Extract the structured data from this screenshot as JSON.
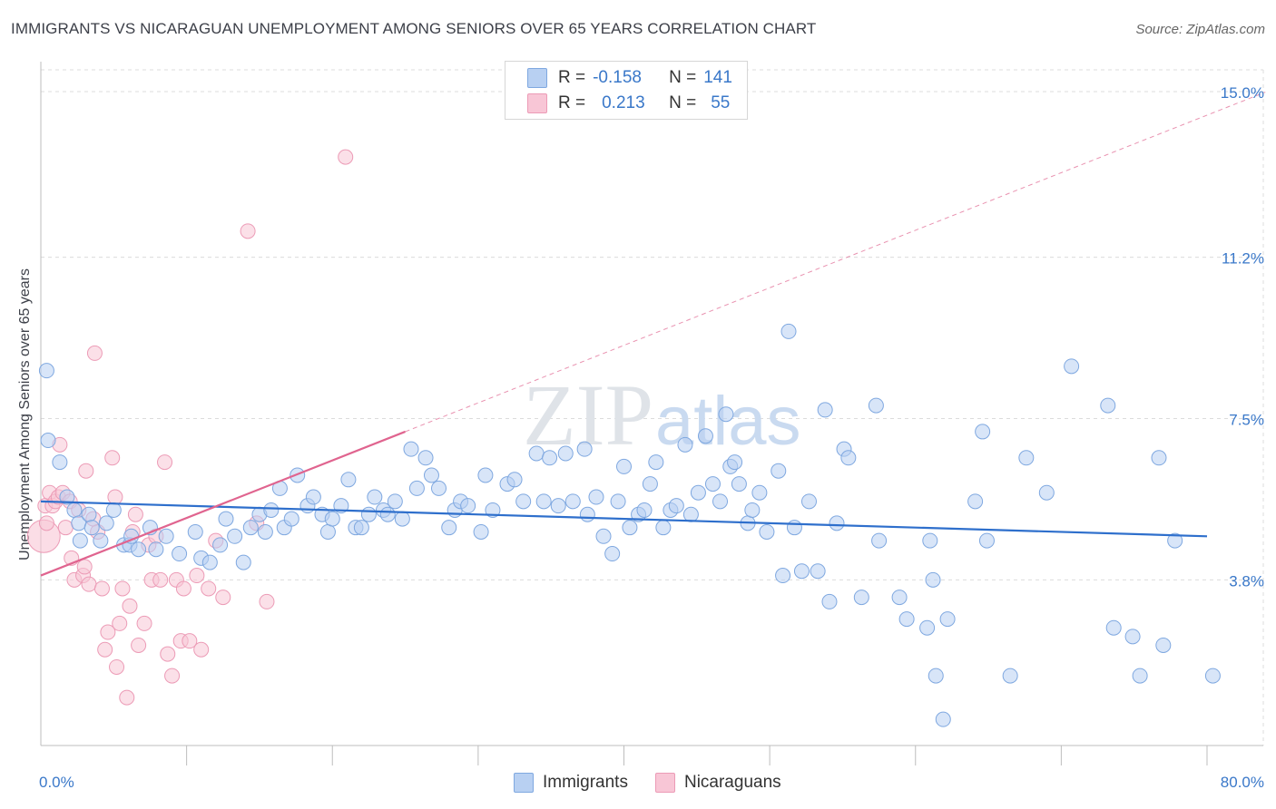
{
  "header": {
    "title": "IMMIGRANTS VS NICARAGUAN UNEMPLOYMENT AMONG SENIORS OVER 65 YEARS CORRELATION CHART",
    "source": "Source: ZipAtlas.com"
  },
  "watermark": {
    "zip": "ZIP",
    "atlas": "atlas"
  },
  "legend_top": {
    "immigrants": {
      "r_label": "R =",
      "r_value": "-0.158",
      "n_label": "N =",
      "n_value": "141"
    },
    "nicaraguans": {
      "r_label": "R =",
      "r_value": "0.213",
      "n_label": "N =",
      "n_value": "55"
    }
  },
  "legend_bottom": {
    "immigrants": "Immigrants",
    "nicaraguans": "Nicaraguans"
  },
  "colors": {
    "immigrants": "#7fa8e0",
    "immigrants_fill": "#b8d0f2",
    "nicaraguans": "#ec9bb6",
    "nicaraguans_fill": "#f8c6d6",
    "blue_line": "#2e6fcc",
    "pink_line": "#e0648f",
    "tick_text": "#3a78c9"
  },
  "chart_data": {
    "type": "scatter",
    "title": "IMMIGRANTS VS NICARAGUAN UNEMPLOYMENT AMONG SENIORS OVER 65 YEARS CORRELATION CHART",
    "xlabel": "",
    "ylabel": "Unemployment Among Seniors over 65 years",
    "xlim": [
      0,
      80
    ],
    "ylim": [
      0,
      15.5
    ],
    "x_tick_labels": [
      "0.0%",
      "80.0%"
    ],
    "y_ticks": [
      3.8,
      7.5,
      11.2,
      15.0
    ],
    "y_tick_labels": [
      "3.8%",
      "7.5%",
      "11.2%",
      "15.0%"
    ],
    "series": [
      {
        "name": "Immigrants",
        "r": -0.158,
        "n": 141,
        "trend": {
          "x": [
            0,
            80
          ],
          "y": [
            5.6,
            4.8
          ]
        },
        "points": [
          [
            0.4,
            8.6
          ],
          [
            0.5,
            7.0
          ],
          [
            1.3,
            6.5
          ],
          [
            1.8,
            5.7
          ],
          [
            2.3,
            5.4
          ],
          [
            2.6,
            5.1
          ],
          [
            2.7,
            4.7
          ],
          [
            3.3,
            5.3
          ],
          [
            3.5,
            5.0
          ],
          [
            4.1,
            4.7
          ],
          [
            4.5,
            5.1
          ],
          [
            5.0,
            5.4
          ],
          [
            5.7,
            4.6
          ],
          [
            6.1,
            4.6
          ],
          [
            6.2,
            4.8
          ],
          [
            6.7,
            4.5
          ],
          [
            7.5,
            5.0
          ],
          [
            7.9,
            4.5
          ],
          [
            8.6,
            4.8
          ],
          [
            9.5,
            4.4
          ],
          [
            10.6,
            4.9
          ],
          [
            11.0,
            4.3
          ],
          [
            11.6,
            4.2
          ],
          [
            12.3,
            4.6
          ],
          [
            12.7,
            5.2
          ],
          [
            13.3,
            4.8
          ],
          [
            13.9,
            4.2
          ],
          [
            14.4,
            5.0
          ],
          [
            15.0,
            5.3
          ],
          [
            15.4,
            4.9
          ],
          [
            15.8,
            5.4
          ],
          [
            16.4,
            5.9
          ],
          [
            16.7,
            5.0
          ],
          [
            17.2,
            5.2
          ],
          [
            17.6,
            6.2
          ],
          [
            18.3,
            5.5
          ],
          [
            18.7,
            5.7
          ],
          [
            19.3,
            5.3
          ],
          [
            19.7,
            4.9
          ],
          [
            20.0,
            5.2
          ],
          [
            20.6,
            5.5
          ],
          [
            21.1,
            6.1
          ],
          [
            21.6,
            5.0
          ],
          [
            22.0,
            5.0
          ],
          [
            22.5,
            5.3
          ],
          [
            22.9,
            5.7
          ],
          [
            23.5,
            5.4
          ],
          [
            23.8,
            5.3
          ],
          [
            24.3,
            5.6
          ],
          [
            24.8,
            5.2
          ],
          [
            25.4,
            6.8
          ],
          [
            25.8,
            5.9
          ],
          [
            26.4,
            6.6
          ],
          [
            26.8,
            6.2
          ],
          [
            27.3,
            5.9
          ],
          [
            28.0,
            5.0
          ],
          [
            28.4,
            5.4
          ],
          [
            28.8,
            5.6
          ],
          [
            29.3,
            5.5
          ],
          [
            30.2,
            4.9
          ],
          [
            30.5,
            6.2
          ],
          [
            31.0,
            5.4
          ],
          [
            32.0,
            6.0
          ],
          [
            32.5,
            6.1
          ],
          [
            33.1,
            5.6
          ],
          [
            34.0,
            6.7
          ],
          [
            34.5,
            5.6
          ],
          [
            34.9,
            6.6
          ],
          [
            35.5,
            5.5
          ],
          [
            36.0,
            6.7
          ],
          [
            36.5,
            5.6
          ],
          [
            37.3,
            6.8
          ],
          [
            37.5,
            5.3
          ],
          [
            38.1,
            5.7
          ],
          [
            38.6,
            4.8
          ],
          [
            39.2,
            4.4
          ],
          [
            39.6,
            5.6
          ],
          [
            40.0,
            6.4
          ],
          [
            40.4,
            5.0
          ],
          [
            41.0,
            5.3
          ],
          [
            41.4,
            5.4
          ],
          [
            41.8,
            6.0
          ],
          [
            42.2,
            6.5
          ],
          [
            42.7,
            5.0
          ],
          [
            43.2,
            5.4
          ],
          [
            43.6,
            5.5
          ],
          [
            44.2,
            6.9
          ],
          [
            44.6,
            5.3
          ],
          [
            45.1,
            5.8
          ],
          [
            45.6,
            7.1
          ],
          [
            46.1,
            6.0
          ],
          [
            46.6,
            5.6
          ],
          [
            47.0,
            7.6
          ],
          [
            47.3,
            6.4
          ],
          [
            47.6,
            6.5
          ],
          [
            47.9,
            6.0
          ],
          [
            48.5,
            5.1
          ],
          [
            48.8,
            5.4
          ],
          [
            49.3,
            5.8
          ],
          [
            49.8,
            4.9
          ],
          [
            50.6,
            6.3
          ],
          [
            50.9,
            3.9
          ],
          [
            51.3,
            9.5
          ],
          [
            51.7,
            5.0
          ],
          [
            52.2,
            4.0
          ],
          [
            52.7,
            5.6
          ],
          [
            53.3,
            4.0
          ],
          [
            53.8,
            7.7
          ],
          [
            54.1,
            3.3
          ],
          [
            54.6,
            5.1
          ],
          [
            55.1,
            6.8
          ],
          [
            55.4,
            6.6
          ],
          [
            56.3,
            3.4
          ],
          [
            57.3,
            7.8
          ],
          [
            57.5,
            4.7
          ],
          [
            58.9,
            3.4
          ],
          [
            59.4,
            2.9
          ],
          [
            60.8,
            2.7
          ],
          [
            61.2,
            3.8
          ],
          [
            61.4,
            1.6
          ],
          [
            61.0,
            4.7
          ],
          [
            62.2,
            2.9
          ],
          [
            61.9,
            0.6
          ],
          [
            64.1,
            5.6
          ],
          [
            64.6,
            7.2
          ],
          [
            64.9,
            4.7
          ],
          [
            66.5,
            1.6
          ],
          [
            67.6,
            6.6
          ],
          [
            69.0,
            5.8
          ],
          [
            70.7,
            8.7
          ],
          [
            73.2,
            7.8
          ],
          [
            73.6,
            2.7
          ],
          [
            74.9,
            2.5
          ],
          [
            75.4,
            1.6
          ],
          [
            76.7,
            6.6
          ],
          [
            77.0,
            2.3
          ],
          [
            77.8,
            4.7
          ],
          [
            80.4,
            1.6
          ]
        ]
      },
      {
        "name": "Nicaraguans",
        "r": 0.213,
        "n": 55,
        "trend": {
          "x": [
            0,
            25
          ],
          "y": [
            3.9,
            7.2
          ]
        },
        "points": [
          [
            0.2,
            4.8
          ],
          [
            0.3,
            5.5
          ],
          [
            0.4,
            5.1
          ],
          [
            0.6,
            5.8
          ],
          [
            0.8,
            5.5
          ],
          [
            1.0,
            5.6
          ],
          [
            1.2,
            5.7
          ],
          [
            1.3,
            6.9
          ],
          [
            1.5,
            5.8
          ],
          [
            1.7,
            5.0
          ],
          [
            2.0,
            5.6
          ],
          [
            2.1,
            4.3
          ],
          [
            2.3,
            3.8
          ],
          [
            2.6,
            5.4
          ],
          [
            2.9,
            3.9
          ],
          [
            3.0,
            4.1
          ],
          [
            3.1,
            6.3
          ],
          [
            3.3,
            3.7
          ],
          [
            3.6,
            5.2
          ],
          [
            3.7,
            9.0
          ],
          [
            3.9,
            4.9
          ],
          [
            4.2,
            3.6
          ],
          [
            4.4,
            2.2
          ],
          [
            4.6,
            2.6
          ],
          [
            4.9,
            6.6
          ],
          [
            5.1,
            5.7
          ],
          [
            5.2,
            1.8
          ],
          [
            5.4,
            2.8
          ],
          [
            5.6,
            3.6
          ],
          [
            5.9,
            1.1
          ],
          [
            6.1,
            3.2
          ],
          [
            6.3,
            4.9
          ],
          [
            6.5,
            5.3
          ],
          [
            6.7,
            2.3
          ],
          [
            7.1,
            2.8
          ],
          [
            7.4,
            4.6
          ],
          [
            7.6,
            3.8
          ],
          [
            7.9,
            4.8
          ],
          [
            8.2,
            3.8
          ],
          [
            8.5,
            6.5
          ],
          [
            8.7,
            2.1
          ],
          [
            9.0,
            1.6
          ],
          [
            9.3,
            3.8
          ],
          [
            9.6,
            2.4
          ],
          [
            9.8,
            3.6
          ],
          [
            10.2,
            2.4
          ],
          [
            10.7,
            3.9
          ],
          [
            11.0,
            2.2
          ],
          [
            11.5,
            3.6
          ],
          [
            12.0,
            4.7
          ],
          [
            12.5,
            3.4
          ],
          [
            14.2,
            11.8
          ],
          [
            14.8,
            5.1
          ],
          [
            15.5,
            3.3
          ],
          [
            20.9,
            13.5
          ]
        ]
      }
    ]
  }
}
